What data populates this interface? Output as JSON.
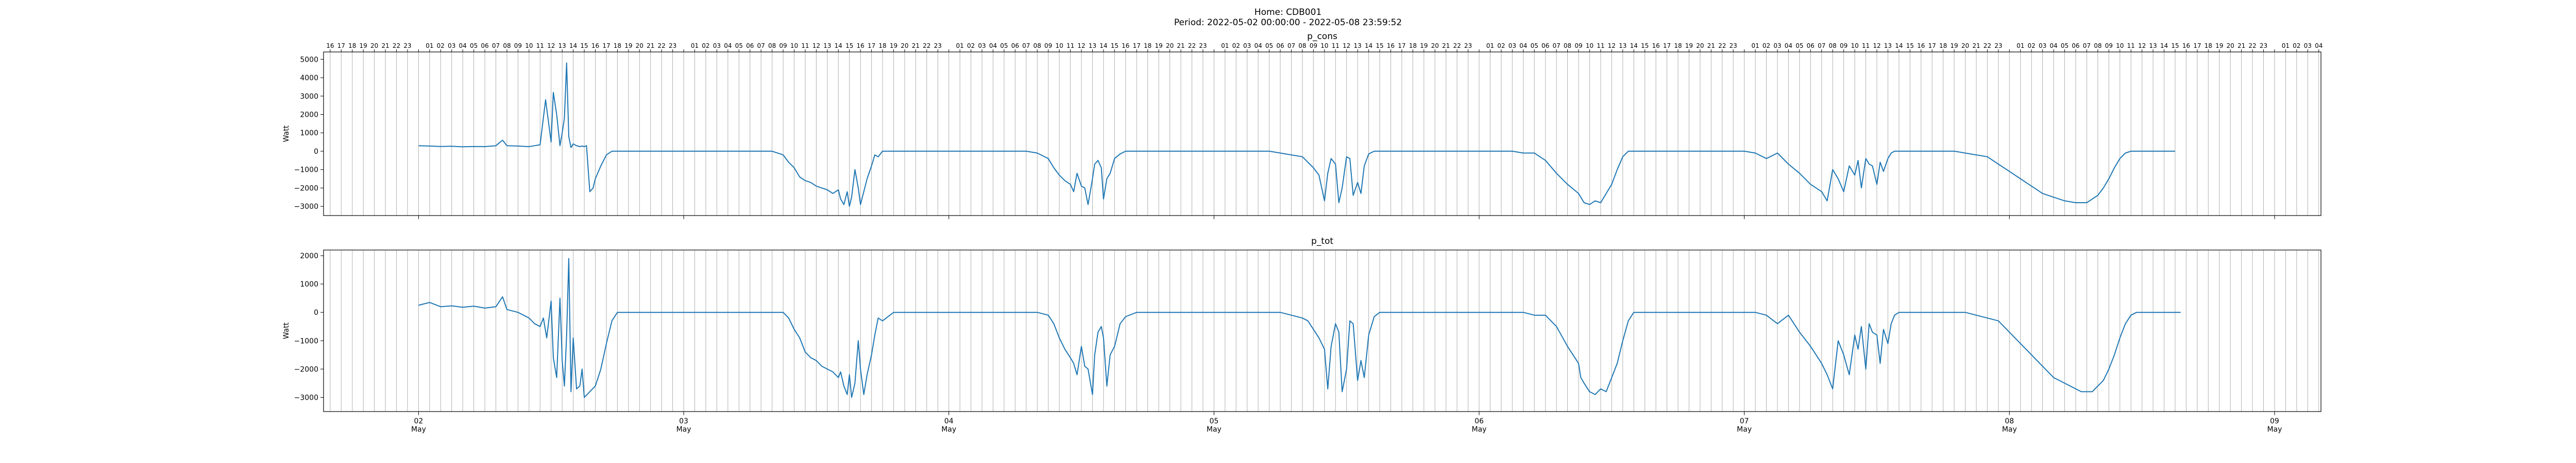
{
  "figure": {
    "home_label": "Home: CDB001",
    "period_label": "Period: 2022-05-02 00:00:00 - 2022-05-08 23:59:52"
  },
  "colors": {
    "line": "#1f77b4",
    "hour_lines": "#b0b0b0",
    "axes": "#000000"
  },
  "chart_data": [
    {
      "type": "line",
      "title": "p_cons",
      "ylabel": "Watt",
      "xlabel": "",
      "ylim": [
        -3500,
        5400
      ],
      "yticks": [
        -3000,
        -2000,
        -1000,
        0,
        1000,
        2000,
        3000,
        4000,
        5000
      ],
      "x_range_hours": [
        -8.6,
        172.2
      ],
      "hour_grid": "vertical line at every hour",
      "top_tick_labels": "hour of day 01..23 (00 omitted), starting at 16 on May 1",
      "x_day_ticks": [
        {
          "day": "02",
          "month": "May",
          "hour": 0
        },
        {
          "day": "03",
          "month": "May",
          "hour": 24
        },
        {
          "day": "04",
          "month": "May",
          "hour": 48
        },
        {
          "day": "05",
          "month": "May",
          "hour": 72
        },
        {
          "day": "06",
          "month": "May",
          "hour": 96
        },
        {
          "day": "07",
          "month": "May",
          "hour": 120
        },
        {
          "day": "08",
          "month": "May",
          "hour": 144
        },
        {
          "day": "09",
          "month": "May",
          "hour": 168
        }
      ],
      "hours": [
        0,
        1,
        2,
        3,
        4,
        5,
        6,
        7,
        7.6,
        8,
        9,
        10,
        10.5,
        11,
        11.5,
        12,
        12.2,
        12.5,
        12.8,
        13,
        13.2,
        13.4,
        13.6,
        13.8,
        14,
        14.3,
        14.6,
        14.8,
        15,
        15.2,
        15.5,
        15.8,
        16,
        16.5,
        17,
        17.5,
        18,
        18.5,
        19,
        20,
        21,
        22,
        23,
        24,
        25,
        26,
        27,
        28,
        29,
        30,
        31,
        32,
        33,
        33.5,
        34,
        34.5,
        35,
        35.5,
        36,
        36.5,
        37,
        37.5,
        38,
        38.2,
        38.5,
        38.8,
        39,
        39.2,
        39.5,
        39.8,
        40,
        40.3,
        40.6,
        41,
        41.3,
        41.6,
        42,
        43,
        44,
        45,
        46,
        47,
        48,
        49,
        50,
        51,
        52,
        53,
        54,
        55,
        56,
        57,
        57.5,
        58,
        58.5,
        59,
        59.3,
        59.6,
        60,
        60.3,
        60.6,
        61,
        61.2,
        61.5,
        61.8,
        62,
        62.3,
        62.6,
        63,
        63.5,
        64,
        65,
        66,
        67,
        68,
        69,
        70,
        71,
        72,
        73,
        74,
        75,
        76,
        77,
        78,
        79,
        80,
        80.5,
        81,
        81.5,
        82,
        82.3,
        82.6,
        83,
        83.3,
        83.6,
        84,
        84.3,
        84.6,
        85,
        85.3,
        85.6,
        86,
        86.5,
        87,
        88,
        89,
        90,
        91,
        92,
        93,
        94,
        95,
        96,
        97,
        98,
        99,
        100,
        101,
        102,
        103,
        104,
        105,
        105.2,
        105.5,
        106,
        106.5,
        107,
        107.5,
        108,
        108.5,
        109,
        109.5,
        110,
        110.5,
        111,
        112,
        113,
        114,
        115,
        116,
        117,
        118,
        119,
        120,
        121,
        122,
        123,
        124,
        125,
        126,
        127,
        127.5,
        128,
        128.5,
        129,
        129.5,
        130,
        130.3,
        130.6,
        131,
        131.3,
        131.6,
        132,
        132.3,
        132.6,
        133,
        133.3,
        133.6,
        134,
        134.5,
        135,
        135.3,
        135.6,
        136,
        137,
        138,
        139,
        140,
        141,
        142,
        143,
        144,
        145,
        146,
        147,
        148,
        149,
        150,
        150.5,
        151,
        151.5,
        152,
        152.5,
        153,
        153.5,
        154,
        154.5,
        155,
        155.5,
        156,
        156.5,
        157,
        157.5,
        158,
        158.5,
        159,
        159.5,
        160,
        161,
        162,
        163,
        164,
        165,
        166,
        167,
        168
      ],
      "series": [
        {
          "name": "p_cons",
          "values": [
            300,
            280,
            260,
            270,
            240,
            260,
            250,
            300,
            600,
            300,
            280,
            250,
            300,
            350,
            2800,
            500,
            3200,
            2000,
            300,
            1000,
            1800,
            4800,
            800,
            200,
            400,
            300,
            250,
            280,
            250,
            300,
            -2200,
            -2000,
            -1500,
            -800,
            -200,
            0,
            0,
            0,
            0,
            0,
            0,
            0,
            0,
            0,
            0,
            0,
            0,
            0,
            0,
            0,
            0,
            0,
            -200,
            -600,
            -900,
            -1400,
            -1600,
            -1700,
            -1900,
            -2000,
            -2100,
            -2300,
            -2100,
            -2600,
            -2900,
            -2200,
            -3000,
            -2500,
            -1000,
            -2000,
            -2900,
            -2200,
            -1500,
            -800,
            -200,
            -300,
            0,
            0,
            0,
            0,
            0,
            0,
            0,
            0,
            0,
            0,
            0,
            0,
            0,
            0,
            -100,
            -400,
            -900,
            -1300,
            -1600,
            -1800,
            -2200,
            -1200,
            -1900,
            -2000,
            -2900,
            -1500,
            -700,
            -500,
            -900,
            -2600,
            -1500,
            -1200,
            -400,
            -150,
            0,
            0,
            0,
            0,
            0,
            0,
            0,
            0,
            0,
            0,
            0,
            0,
            0,
            0,
            -100,
            -200,
            -300,
            -600,
            -900,
            -1300,
            -2700,
            -1200,
            -400,
            -700,
            -2800,
            -2000,
            -300,
            -400,
            -2400,
            -1700,
            -2300,
            -800,
            -150,
            0,
            0,
            0,
            0,
            0,
            0,
            0,
            0,
            0,
            0,
            0,
            0,
            0,
            0,
            -100,
            -100,
            -500,
            -1200,
            -1800,
            -2300,
            -2500,
            -2800,
            -2900,
            -2700,
            -2800,
            -2300,
            -1800,
            -1000,
            -300,
            0,
            0,
            0,
            0,
            0,
            0,
            0,
            0,
            0,
            0,
            0,
            0,
            0,
            -100,
            -400,
            -100,
            -700,
            -1200,
            -1800,
            -2200,
            -2700,
            -1000,
            -1500,
            -2200,
            -800,
            -1300,
            -500,
            -2000,
            -400,
            -700,
            -800,
            -1800,
            -600,
            -1100,
            -400,
            -100,
            0,
            0,
            0,
            0,
            0,
            0,
            0,
            0,
            0,
            0,
            -100,
            -200,
            -300,
            -700,
            -1100,
            -1500,
            -1900,
            -2300,
            -2500,
            -2700,
            -2800,
            -2800,
            -2800,
            -2600,
            -2400,
            -2000,
            -1500,
            -900,
            -400,
            -100,
            0,
            0,
            0,
            0,
            0,
            0,
            0,
            0,
            0
          ]
        }
      ]
    },
    {
      "type": "line",
      "title": "p_tot",
      "ylabel": "Watt",
      "xlabel": "",
      "ylim": [
        -3500,
        2200
      ],
      "yticks": [
        -3000,
        -2000,
        -1000,
        0,
        1000,
        2000
      ],
      "x_range_hours": [
        -8.6,
        172.2
      ],
      "hour_grid": "vertical line at every hour",
      "x_day_ticks": [
        {
          "day": "02",
          "month": "May",
          "hour": 0
        },
        {
          "day": "03",
          "month": "May",
          "hour": 24
        },
        {
          "day": "04",
          "month": "May",
          "hour": 48
        },
        {
          "day": "05",
          "month": "May",
          "hour": 72
        },
        {
          "day": "06",
          "month": "May",
          "hour": 96
        },
        {
          "day": "07",
          "month": "May",
          "hour": 120
        },
        {
          "day": "08",
          "month": "May",
          "hour": 144
        },
        {
          "day": "09",
          "month": "May",
          "hour": 168
        }
      ],
      "hours": [
        0,
        1,
        2,
        3,
        4,
        5,
        6,
        7,
        7.6,
        8,
        9,
        10,
        10.5,
        11,
        11.3,
        11.6,
        12,
        12.2,
        12.5,
        12.8,
        13,
        13.2,
        13.4,
        13.6,
        13.8,
        14,
        14.3,
        14.6,
        14.8,
        15,
        15.5,
        16,
        16.5,
        17,
        17.5,
        18,
        18.5,
        19,
        20,
        21,
        22,
        23,
        24,
        25,
        26,
        27,
        28,
        29,
        30,
        31,
        32,
        33,
        33.5,
        34,
        34.5,
        35,
        35.5,
        36,
        36.5,
        37,
        37.5,
        38,
        38.2,
        38.5,
        38.8,
        39,
        39.2,
        39.5,
        39.8,
        40,
        40.3,
        40.6,
        41,
        41.3,
        41.6,
        42,
        43,
        44,
        45,
        46,
        47,
        48,
        49,
        50,
        51,
        52,
        53,
        54,
        55,
        56,
        57,
        57.5,
        58,
        58.5,
        59,
        59.3,
        59.6,
        60,
        60.3,
        60.6,
        61,
        61.2,
        61.5,
        61.8,
        62,
        62.3,
        62.6,
        63,
        63.5,
        64,
        65,
        66,
        67,
        68,
        69,
        70,
        71,
        72,
        73,
        74,
        75,
        76,
        77,
        78,
        79,
        80,
        80.5,
        81,
        81.5,
        82,
        82.3,
        82.6,
        83,
        83.3,
        83.6,
        84,
        84.3,
        84.6,
        85,
        85.3,
        85.6,
        86,
        86.5,
        87,
        88,
        89,
        90,
        91,
        92,
        93,
        94,
        95,
        96,
        97,
        98,
        99,
        100,
        101,
        102,
        103,
        104,
        105,
        105.2,
        105.5,
        106,
        106.5,
        107,
        107.5,
        108,
        108.5,
        109,
        109.5,
        110,
        110.5,
        111,
        112,
        113,
        114,
        115,
        116,
        117,
        118,
        119,
        120,
        121,
        122,
        123,
        124,
        125,
        126,
        127,
        127.5,
        128,
        128.5,
        129,
        129.5,
        130,
        130.3,
        130.6,
        131,
        131.3,
        131.6,
        132,
        132.3,
        132.6,
        133,
        133.3,
        133.6,
        134,
        134.5,
        135,
        135.3,
        135.6,
        136,
        137,
        138,
        139,
        140,
        141,
        142,
        143,
        144,
        145,
        146,
        147,
        148,
        149,
        150,
        150.5,
        151,
        151.5,
        152,
        152.5,
        153,
        153.5,
        154,
        154.5,
        155,
        155.5,
        156,
        156.5,
        157,
        157.5,
        158,
        158.5,
        159,
        159.5,
        160,
        161,
        162,
        163,
        164,
        165,
        166,
        167,
        168
      ],
      "series": [
        {
          "name": "p_tot",
          "values": [
            250,
            350,
            200,
            230,
            180,
            220,
            150,
            200,
            550,
            100,
            0,
            -200,
            -400,
            -500,
            -200,
            -900,
            400,
            -1600,
            -2300,
            500,
            -1700,
            -2600,
            -800,
            1900,
            -2800,
            -900,
            -2700,
            -2600,
            -2000,
            -3000,
            -2800,
            -2600,
            -2000,
            -1100,
            -300,
            0,
            0,
            0,
            0,
            0,
            0,
            0,
            0,
            0,
            0,
            0,
            0,
            0,
            0,
            0,
            0,
            0,
            -200,
            -600,
            -900,
            -1400,
            -1600,
            -1700,
            -1900,
            -2000,
            -2100,
            -2300,
            -2100,
            -2600,
            -2900,
            -2200,
            -3000,
            -2500,
            -1000,
            -2000,
            -2900,
            -2200,
            -1500,
            -800,
            -200,
            -300,
            0,
            0,
            0,
            0,
            0,
            0,
            0,
            0,
            0,
            0,
            0,
            0,
            0,
            0,
            -100,
            -400,
            -900,
            -1300,
            -1600,
            -1800,
            -2200,
            -1200,
            -1900,
            -2000,
            -2900,
            -1500,
            -700,
            -500,
            -900,
            -2600,
            -1500,
            -1200,
            -400,
            -150,
            0,
            0,
            0,
            0,
            0,
            0,
            0,
            0,
            0,
            0,
            0,
            0,
            0,
            0,
            -100,
            -200,
            -300,
            -600,
            -900,
            -1300,
            -2700,
            -1200,
            -400,
            -700,
            -2800,
            -2000,
            -300,
            -400,
            -2400,
            -1700,
            -2300,
            -800,
            -150,
            0,
            0,
            0,
            0,
            0,
            0,
            0,
            0,
            0,
            0,
            0,
            0,
            0,
            0,
            -100,
            -100,
            -500,
            -1200,
            -1800,
            -2300,
            -2500,
            -2800,
            -2900,
            -2700,
            -2800,
            -2300,
            -1800,
            -1000,
            -300,
            0,
            0,
            0,
            0,
            0,
            0,
            0,
            0,
            0,
            0,
            0,
            0,
            0,
            -100,
            -400,
            -100,
            -700,
            -1200,
            -1800,
            -2200,
            -2700,
            -1000,
            -1500,
            -2200,
            -800,
            -1300,
            -500,
            -2000,
            -400,
            -700,
            -800,
            -1800,
            -600,
            -1100,
            -400,
            -100,
            0,
            0,
            0,
            0,
            0,
            0,
            0,
            0,
            0,
            0,
            -100,
            -200,
            -300,
            -700,
            -1100,
            -1500,
            -1900,
            -2300,
            -2500,
            -2700,
            -2800,
            -2800,
            -2800,
            -2600,
            -2400,
            -2000,
            -1500,
            -900,
            -400,
            -100,
            0,
            0,
            0,
            0,
            0,
            0,
            0,
            0,
            0
          ]
        }
      ]
    }
  ]
}
